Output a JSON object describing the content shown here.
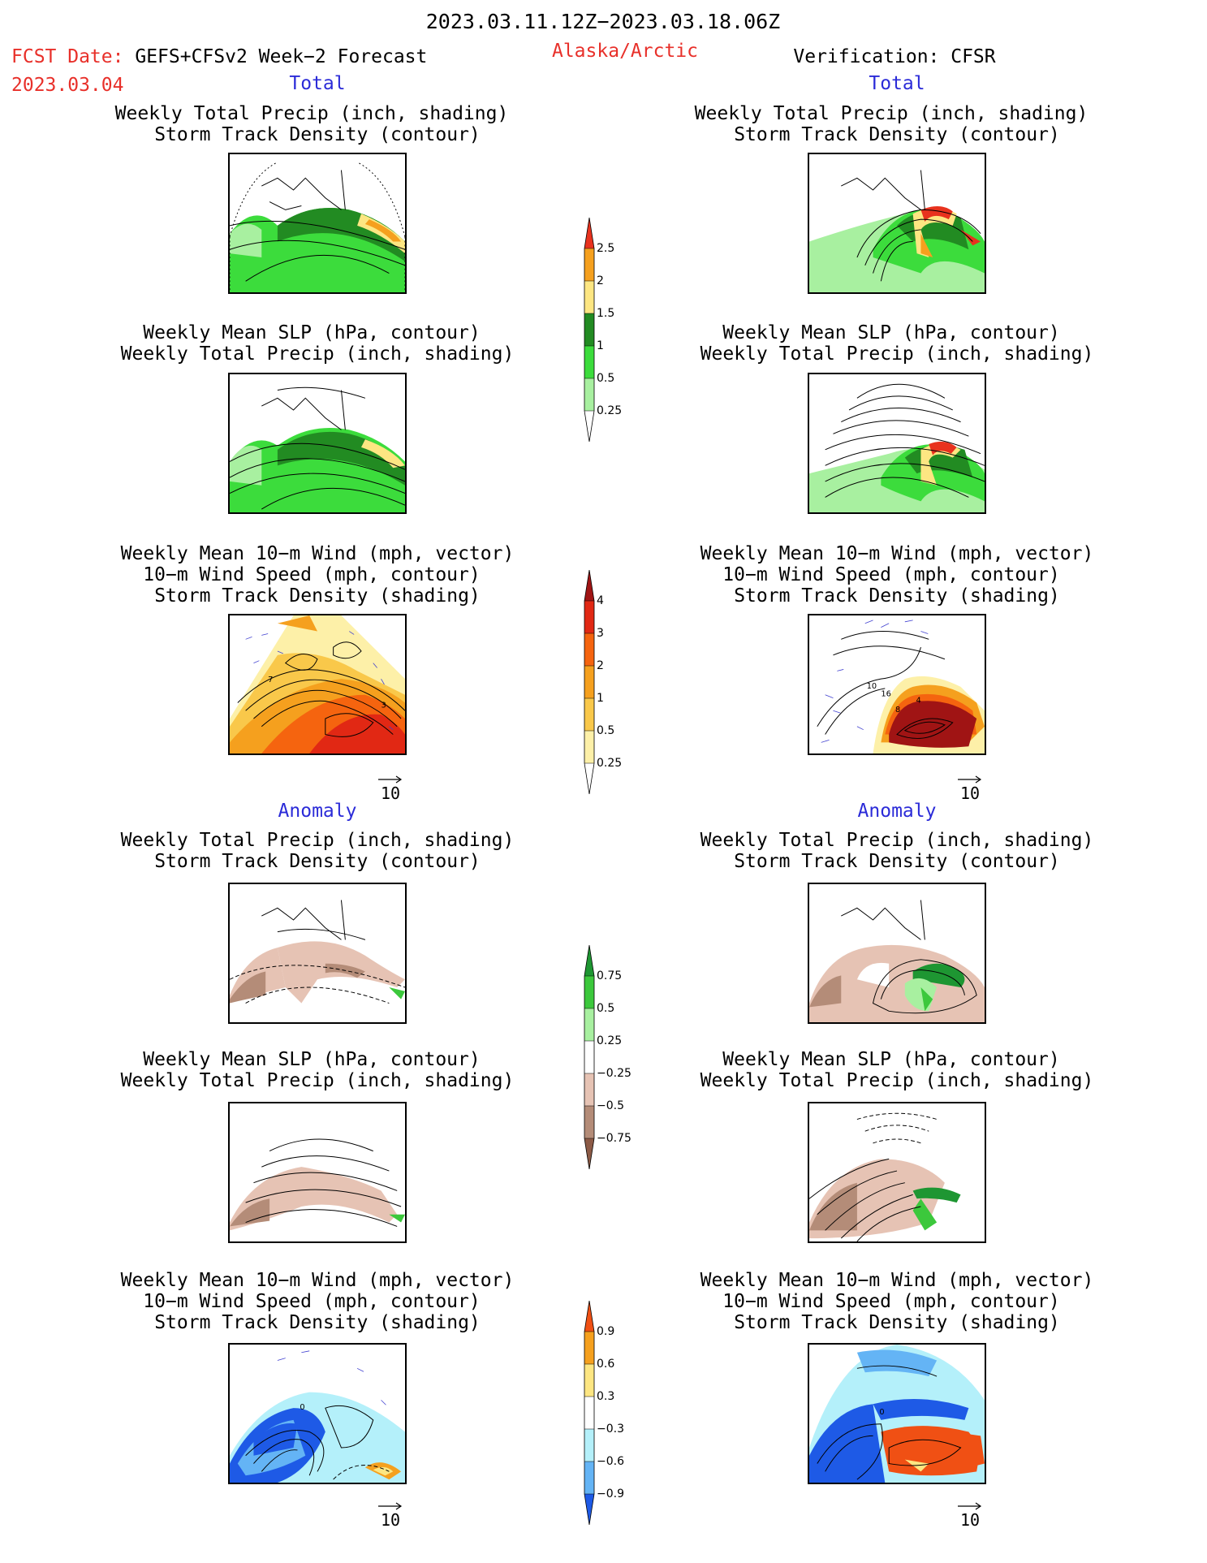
{
  "header": {
    "date_range": "2023.03.11.12Z−2023.03.18.06Z",
    "fcst_prefix": "FCST Date:",
    "fcst_model": "GEFS+CFSv2 Week−2 Forecast",
    "fcst_date": "2023.03.04",
    "region": "Alaska/Arctic",
    "verification": "Verification: CFSR"
  },
  "sections": {
    "total_left": "Total",
    "total_right": "Total",
    "anomaly_left": "Anomaly",
    "anomaly_right": "Anomaly"
  },
  "panel_titles": {
    "precip_track": [
      "Weekly Total Precip (inch, shading)",
      "Storm Track Density (contour)"
    ],
    "slp_precip": [
      "Weekly Mean SLP (hPa, contour)",
      "Weekly Total Precip (inch, shading)"
    ],
    "wind_track": [
      "Weekly Mean 10−m Wind (mph, vector)",
      "10−m Wind Speed (mph, contour)",
      "Storm Track Density (shading)"
    ]
  },
  "vector_ref": "10",
  "colorbars": {
    "precip_total": {
      "labels": [
        "2.5",
        "2",
        "1.5",
        "1",
        "0.5",
        "0.25"
      ],
      "colors": [
        "#e8321e",
        "#f5a01e",
        "#fde682",
        "#228b22",
        "#3cdc3c",
        "#a8f0a0"
      ]
    },
    "track_total": {
      "labels": [
        "4",
        "3",
        "2",
        "1",
        "0.5",
        "0.25"
      ],
      "colors": [
        "#a01414",
        "#e12814",
        "#f5640f",
        "#f5a01e",
        "#f9c84a",
        "#fdf0a8"
      ]
    },
    "precip_anom": {
      "labels": [
        "0.75",
        "0.5",
        "0.25",
        "−0.25",
        "−0.5",
        "−0.75"
      ],
      "colors": [
        "#1e9632",
        "#3cc83c",
        "#a8f0a0",
        "#ffffff",
        "#e6c3b4",
        "#b48c78",
        "#8c5a46"
      ]
    },
    "track_anom": {
      "labels": [
        "0.9",
        "0.6",
        "0.3",
        "−0.3",
        "−0.6",
        "−0.9"
      ],
      "colors": [
        "#f05014",
        "#f5a01e",
        "#fde682",
        "#ffffff",
        "#b4f0fa",
        "#64b4f5",
        "#1e5ae6"
      ]
    }
  },
  "map_labels": {
    "wind_total_left": [
      "7",
      "3"
    ],
    "wind_total_right": [
      "10",
      "16",
      "8",
      "4"
    ],
    "wind_anom_left": [
      "0"
    ],
    "wind_anom_right": [
      "0"
    ]
  }
}
